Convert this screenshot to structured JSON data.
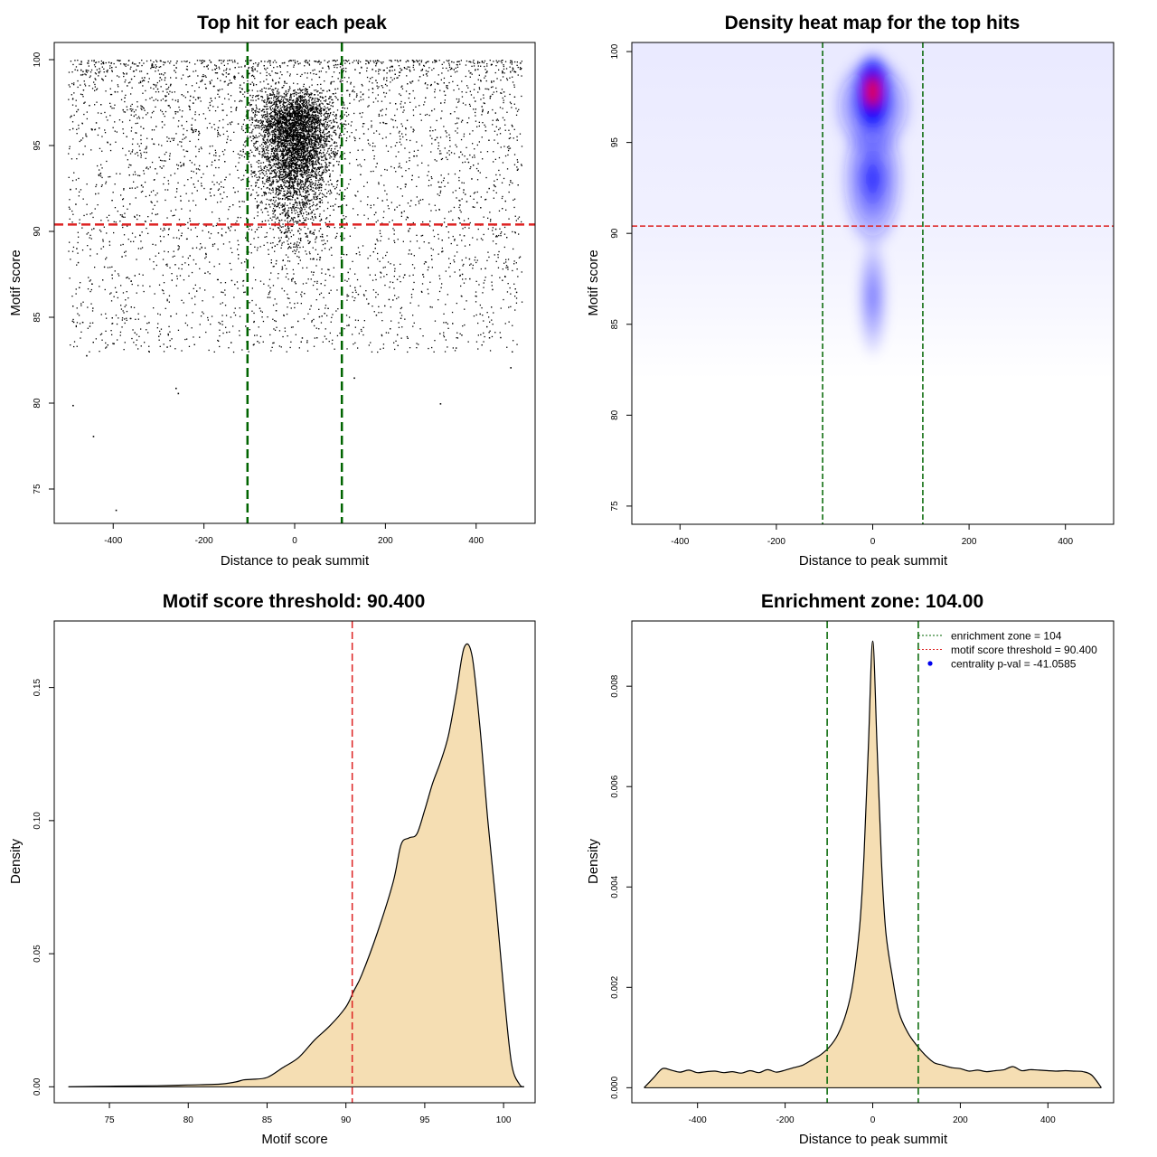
{
  "chart_data": [
    {
      "type": "scatter",
      "title": "Top hit for each peak",
      "xlabel": "Distance to peak summit",
      "ylabel": "Motif score",
      "xlim": [
        -530,
        530
      ],
      "ylim": [
        73,
        101
      ],
      "xticks": [
        -400,
        -200,
        0,
        200,
        400
      ],
      "yticks": [
        75,
        80,
        85,
        90,
        95,
        100
      ],
      "xtick_labels": [
        "-400",
        "-200",
        "0",
        "200",
        "400"
      ],
      "ytick_labels": [
        "75",
        "80",
        "85",
        "90",
        "95",
        "100"
      ],
      "vlines": [
        -104,
        104
      ],
      "vline_color": "#006400",
      "hline": 90.4,
      "hline_color": "#dd2222",
      "point_color": "#000000",
      "distribution": {
        "n_points": 9000,
        "x_range": [
          -500,
          500
        ],
        "center_sd": 40,
        "background_fraction": 0.45,
        "score_mode": 97.5,
        "score_range": [
          73.7,
          100
        ],
        "outliers": [
          [
            -490,
            79.9
          ],
          [
            -445,
            78.1
          ],
          [
            -395,
            73.8
          ],
          [
            -263,
            80.9
          ],
          [
            -258,
            80.6
          ],
          [
            320,
            80
          ],
          [
            130,
            81.5
          ],
          [
            475,
            82.1
          ],
          [
            -460,
            82.8
          ],
          [
            -400,
            83.5
          ]
        ]
      }
    },
    {
      "type": "heatmap",
      "title": "Density heat map for the top hits",
      "xlabel": "Distance to peak summit",
      "ylabel": "Motif score",
      "xlim": [
        -500,
        500
      ],
      "ylim": [
        74,
        100.5
      ],
      "xticks": [
        -400,
        -200,
        0,
        200,
        400
      ],
      "yticks": [
        75,
        80,
        85,
        90,
        95,
        100
      ],
      "xtick_labels": [
        "-400",
        "-200",
        "0",
        "200",
        "400"
      ],
      "ytick_labels": [
        "75",
        "80",
        "85",
        "90",
        "95",
        "100"
      ],
      "vlines": [
        -104,
        104
      ],
      "vline_color": "#006400",
      "hline": 90.4,
      "hline_color": "#dd2222",
      "colormap": [
        "#ffffff",
        "#0000ff",
        "#ff0000"
      ],
      "peak": {
        "x": 0,
        "y": 97.8
      }
    },
    {
      "type": "area",
      "title": "Motif score threshold: 90.400",
      "xlabel": "Motif score",
      "ylabel": "Density",
      "xlim": [
        71.5,
        102
      ],
      "ylim": [
        -0.006,
        0.175
      ],
      "xticks": [
        75,
        80,
        85,
        90,
        95,
        100
      ],
      "yticks": [
        0.0,
        0.05,
        0.1,
        0.15
      ],
      "xtick_labels": [
        "75",
        "80",
        "85",
        "90",
        "95",
        "100"
      ],
      "ytick_labels": [
        "0.00",
        "0.05",
        "0.10",
        "0.15"
      ],
      "fill_color": "#f5deb3",
      "vline": 90.4,
      "vline_color": "#dd2222",
      "x": [
        72.4,
        75,
        78,
        80,
        82,
        83,
        83.5,
        84,
        85,
        86,
        87,
        88,
        89,
        90,
        90.5,
        91,
        92,
        93,
        93.5,
        94,
        94.5,
        95,
        95.5,
        96,
        96.5,
        97,
        97.5,
        98,
        98.5,
        99,
        99.5,
        100,
        100.5,
        101,
        101.3
      ],
      "values": [
        0.0,
        0.0002,
        0.0004,
        0.0007,
        0.001,
        0.0018,
        0.0026,
        0.0028,
        0.0035,
        0.0072,
        0.011,
        0.0175,
        0.023,
        0.03,
        0.036,
        0.042,
        0.058,
        0.077,
        0.091,
        0.0935,
        0.095,
        0.104,
        0.114,
        0.122,
        0.132,
        0.148,
        0.165,
        0.162,
        0.135,
        0.1,
        0.07,
        0.037,
        0.009,
        0.001,
        0.0
      ]
    },
    {
      "type": "area",
      "title": "Enrichment zone: 104.00",
      "xlabel": "Distance to peak summit",
      "ylabel": "Density",
      "xlim": [
        -550,
        550
      ],
      "ylim": [
        -0.0003,
        0.0093
      ],
      "xticks": [
        -400,
        -200,
        0,
        200,
        400
      ],
      "yticks": [
        0.0,
        0.002,
        0.004,
        0.006,
        0.008
      ],
      "xtick_labels": [
        "-400",
        "-200",
        "0",
        "200",
        "400"
      ],
      "ytick_labels": [
        "0.000",
        "0.002",
        "0.004",
        "0.006",
        "0.008"
      ],
      "fill_color": "#f5deb3",
      "vlines": [
        -104,
        104
      ],
      "vline_color": "#006400",
      "x": [
        -522,
        -500,
        -480,
        -460,
        -440,
        -420,
        -400,
        -380,
        -360,
        -340,
        -320,
        -300,
        -280,
        -260,
        -240,
        -220,
        -200,
        -180,
        -160,
        -140,
        -120,
        -100,
        -80,
        -60,
        -45,
        -30,
        -20,
        -10,
        0,
        10,
        20,
        30,
        45,
        60,
        80,
        100,
        120,
        140,
        160,
        180,
        200,
        220,
        240,
        260,
        280,
        300,
        320,
        340,
        360,
        380,
        400,
        420,
        440,
        460,
        480,
        500,
        522
      ],
      "values": [
        0.0,
        0.0002,
        0.00038,
        0.00035,
        0.00031,
        0.00035,
        0.0003,
        0.00032,
        0.00033,
        0.0003,
        0.00032,
        0.00029,
        0.00034,
        0.0003,
        0.00036,
        0.00031,
        0.00035,
        0.0004,
        0.00045,
        0.00055,
        0.00065,
        0.0008,
        0.00105,
        0.0015,
        0.0021,
        0.0032,
        0.0046,
        0.0068,
        0.0089,
        0.0068,
        0.0045,
        0.0031,
        0.0022,
        0.0015,
        0.0011,
        0.00085,
        0.00065,
        0.0005,
        0.00045,
        0.0004,
        0.00038,
        0.00033,
        0.00035,
        0.00032,
        0.00034,
        0.00036,
        0.00042,
        0.00034,
        0.00036,
        0.00035,
        0.00034,
        0.00033,
        0.00034,
        0.00033,
        0.00032,
        0.00025,
        0.0
      ],
      "legend": {
        "position": "top-right",
        "items": [
          {
            "label": "enrichment zone = 104",
            "color": "#006400",
            "style": "dotted-line"
          },
          {
            "label": "motif score threshold = 90.400",
            "color": "#dd2222",
            "style": "dotted-line"
          },
          {
            "label": "centrality p-val = -41.0585",
            "color": "#0000ee",
            "style": "point"
          }
        ]
      }
    }
  ]
}
